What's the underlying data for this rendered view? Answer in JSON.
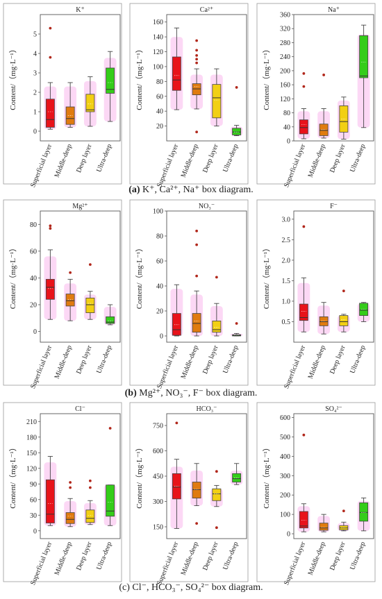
{
  "categories": [
    "Superficial layer",
    "Middle-deep",
    "Deep layer",
    "Ultra-deep"
  ],
  "category_colors": [
    "#e8121b",
    "#e07b10",
    "#f2cf14",
    "#35cc1a"
  ],
  "halo_color": "#f9b8ec",
  "outlier_color": "#b1271b",
  "ylabel": "Content/（mg·L⁻¹）",
  "captions": [
    {
      "bold": "(a)",
      "text": " K⁺, Ca²⁺, Na⁺ box diagram."
    },
    {
      "bold": "(b)",
      "text": " Mg²⁺, NO₃⁻, F⁻ box diagram."
    },
    {
      "bold": "",
      "text": "(c) Cl⁻, HCO₃⁻, SO₄²⁻ box diagram."
    }
  ],
  "chart_data": [
    {
      "type": "box",
      "title": "K⁺",
      "ylim": [
        -0.5,
        6
      ],
      "yticks": [
        0,
        1,
        2,
        3,
        4,
        5
      ],
      "categories": [
        "Superficial layer",
        "Middle-deep",
        "Deep layer",
        "Ultra-deep"
      ],
      "boxes": [
        {
          "min": 0.1,
          "q1": 0.2,
          "median": 0.6,
          "mean": 1.0,
          "q3": 1.65,
          "max": 2.5,
          "outliers": [
            3.8,
            5.3
          ]
        },
        {
          "min": 0.2,
          "q1": 0.35,
          "median": 0.65,
          "mean": 0.8,
          "q3": 1.25,
          "max": 2.5,
          "outliers": []
        },
        {
          "min": 0.25,
          "q1": 1.0,
          "median": 1.1,
          "mean": 1.4,
          "q3": 1.9,
          "max": 2.8,
          "outliers": []
        },
        {
          "min": 0.5,
          "q1": 1.95,
          "median": 2.15,
          "mean": 2.5,
          "q3": 3.25,
          "max": 4.1,
          "outliers": []
        }
      ]
    },
    {
      "type": "box",
      "title": "Ca²⁺",
      "ylim": [
        0,
        170
      ],
      "yticks": [
        20,
        40,
        60,
        80,
        100,
        120,
        140,
        160
      ],
      "categories": [
        "Superficial layer",
        "Middle-deep",
        "Deep layer",
        "Ultra-deep"
      ],
      "boxes": [
        {
          "min": 42,
          "q1": 68,
          "median": 82,
          "mean": 88,
          "q3": 113,
          "max": 152,
          "outliers": []
        },
        {
          "min": 43,
          "q1": 62,
          "median": 70,
          "mean": 73,
          "q3": 77,
          "max": 97,
          "outliers": [
            12,
            105,
            110,
            115,
            122,
            135
          ]
        },
        {
          "min": 20,
          "q1": 31,
          "median": 58,
          "mean": 55,
          "q3": 76,
          "max": 97,
          "outliers": []
        },
        {
          "min": 7,
          "q1": 8,
          "median": 12,
          "mean": 12,
          "q3": 17,
          "max": 21,
          "outliers": [
            72
          ]
        }
      ]
    },
    {
      "type": "box",
      "title": "Na⁺",
      "ylim": [
        0,
        360
      ],
      "yticks": [
        0,
        40,
        80,
        120,
        160,
        200,
        240,
        280,
        320,
        360
      ],
      "categories": [
        "Superficial layer",
        "Middle-deep",
        "Deep layer",
        "Ultra-deep"
      ],
      "boxes": [
        {
          "min": 6,
          "q1": 20,
          "median": 38,
          "mean": 47,
          "q3": 60,
          "max": 92,
          "outliers": [
            155,
            192
          ]
        },
        {
          "min": 8,
          "q1": 15,
          "median": 30,
          "mean": 32,
          "q3": 48,
          "max": 92,
          "outliers": [
            188
          ]
        },
        {
          "min": 5,
          "q1": 25,
          "median": 55,
          "mean": 62,
          "q3": 100,
          "max": 125,
          "outliers": []
        },
        {
          "min": 38,
          "q1": 180,
          "median": 185,
          "mean": 225,
          "q3": 300,
          "max": 330,
          "outliers": []
        }
      ]
    },
    {
      "type": "box",
      "title": "Mg²⁺",
      "ylim": [
        -8,
        90
      ],
      "yticks": [
        0,
        20,
        40,
        60,
        80
      ],
      "categories": [
        "Superficial layer",
        "Middle-deep",
        "Deep layer",
        "Ultra-deep"
      ],
      "boxes": [
        {
          "min": 9,
          "q1": 24,
          "median": 33,
          "mean": 32,
          "q3": 39,
          "max": 61,
          "outliers": [
            77,
            79
          ]
        },
        {
          "min": 8,
          "q1": 19,
          "median": 23,
          "mean": 24,
          "q3": 28,
          "max": 39,
          "outliers": [
            44
          ]
        },
        {
          "min": 9,
          "q1": 14,
          "median": 20,
          "mean": 21,
          "q3": 25,
          "max": 30,
          "outliers": [
            50
          ]
        },
        {
          "min": 5,
          "q1": 6,
          "median": 7,
          "mean": 8,
          "q3": 11,
          "max": 20,
          "outliers": []
        }
      ]
    },
    {
      "type": "box",
      "title": "NO₃⁻",
      "ylim": [
        -5,
        100
      ],
      "yticks": [
        0,
        20,
        40,
        60,
        80,
        100
      ],
      "categories": [
        "Superficial layer",
        "Middle-deep",
        "Deep layer",
        "Ultra-deep"
      ],
      "boxes": [
        {
          "min": 0,
          "q1": 0.5,
          "median": 5,
          "mean": 9,
          "q3": 18,
          "max": 41,
          "outliers": []
        },
        {
          "min": 0,
          "q1": 3,
          "median": 10,
          "mean": 12,
          "q3": 18,
          "max": 36,
          "outliers": [
            48,
            73,
            84
          ]
        },
        {
          "min": 0,
          "q1": 3,
          "median": 5,
          "mean": 7,
          "q3": 12,
          "max": 26,
          "outliers": [
            47
          ]
        },
        {
          "min": 0,
          "q1": 0,
          "median": 0.5,
          "mean": 1,
          "q3": 1,
          "max": 2,
          "outliers": [
            10
          ]
        }
      ]
    },
    {
      "type": "box",
      "title": "F⁻",
      "ylim": [
        0,
        3.2
      ],
      "yticks": [
        0.5,
        1.0,
        1.5,
        2.0,
        2.5,
        3.0
      ],
      "categories": [
        "Superficial layer",
        "Middle-deep",
        "Deep layer",
        "Ultra-deep"
      ],
      "boxes": [
        {
          "min": 0.25,
          "q1": 0.53,
          "median": 0.6,
          "mean": 0.75,
          "q3": 0.93,
          "max": 1.57,
          "outliers": [
            2.82
          ]
        },
        {
          "min": 0.2,
          "q1": 0.4,
          "median": 0.5,
          "mean": 0.52,
          "q3": 0.62,
          "max": 0.97,
          "outliers": []
        },
        {
          "min": 0.25,
          "q1": 0.4,
          "median": 0.5,
          "mean": 0.55,
          "q3": 0.65,
          "max": 0.68,
          "outliers": [
            1.25
          ]
        },
        {
          "min": 0.5,
          "q1": 0.65,
          "median": 0.78,
          "mean": 0.8,
          "q3": 0.95,
          "max": 0.97,
          "outliers": []
        }
      ]
    },
    {
      "type": "box",
      "title": "Cl⁻",
      "ylim": [
        -15,
        225
      ],
      "yticks": [
        0,
        30,
        60,
        90,
        120,
        150,
        180,
        210
      ],
      "categories": [
        "Superficial layer",
        "Middle-deep",
        "Deep layer",
        "Ultra-deep"
      ],
      "boxes": [
        {
          "min": 10,
          "q1": 15,
          "median": 32,
          "mean": 52,
          "q3": 98,
          "max": 143,
          "outliers": []
        },
        {
          "min": 8,
          "q1": 14,
          "median": 22,
          "mean": 28,
          "q3": 35,
          "max": 62,
          "outliers": [
            83,
            93
          ]
        },
        {
          "min": 12,
          "q1": 16,
          "median": 24,
          "mean": 30,
          "q3": 40,
          "max": 58,
          "outliers": [
            83,
            96
          ]
        },
        {
          "min": 10,
          "q1": 28,
          "median": 38,
          "mean": 55,
          "q3": 88,
          "max": 88,
          "outliers": [
            197
          ]
        }
      ]
    },
    {
      "type": "box",
      "title": "HCO₃⁻",
      "ylim": [
        80,
        820
      ],
      "yticks": [
        150,
        300,
        450,
        600,
        750
      ],
      "categories": [
        "Superficial layer",
        "Middle-deep",
        "Deep layer",
        "Ultra-deep"
      ],
      "boxes": [
        {
          "min": 140,
          "q1": 315,
          "median": 385,
          "mean": 390,
          "q3": 465,
          "max": 550,
          "outliers": [
            765
          ]
        },
        {
          "min": 275,
          "q1": 320,
          "median": 370,
          "mean": 372,
          "q3": 415,
          "max": 525,
          "outliers": [
            170
          ]
        },
        {
          "min": 270,
          "q1": 305,
          "median": 345,
          "mean": 345,
          "q3": 375,
          "max": 395,
          "outliers": [
            145,
            478
          ]
        },
        {
          "min": 400,
          "q1": 415,
          "median": 435,
          "mean": 440,
          "q3": 465,
          "max": 525,
          "outliers": []
        }
      ]
    },
    {
      "type": "box",
      "title": "SO₄²⁻",
      "ylim": [
        -25,
        620
      ],
      "yticks": [
        0,
        100,
        200,
        300,
        400,
        500,
        600
      ],
      "categories": [
        "Superficial layer",
        "Middle-deep",
        "Deep layer",
        "Ultra-deep"
      ],
      "boxes": [
        {
          "min": 10,
          "q1": 30,
          "median": 40,
          "mean": 70,
          "q3": 115,
          "max": 155,
          "outliers": [
            510
          ]
        },
        {
          "min": 10,
          "q1": 18,
          "median": 30,
          "mean": 35,
          "q3": 55,
          "max": 100,
          "outliers": []
        },
        {
          "min": 15,
          "q1": 20,
          "median": 30,
          "mean": 32,
          "q3": 42,
          "max": 60,
          "outliers": [
            118
          ]
        },
        {
          "min": 15,
          "q1": 65,
          "median": 110,
          "mean": 110,
          "q3": 160,
          "max": 185,
          "outliers": []
        }
      ]
    }
  ]
}
